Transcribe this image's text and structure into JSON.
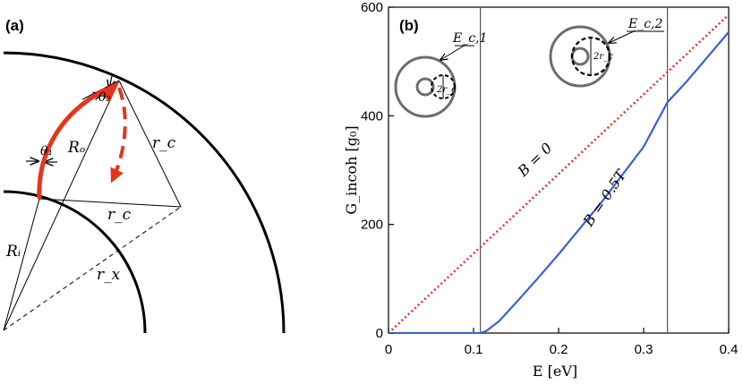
{
  "panel_a": {
    "label": "(a)",
    "annotations": {
      "theta1": "θ₁",
      "theta2": "θ₂",
      "R_o": "Rₒ",
      "R_i": "Rᵢ",
      "r_c_1": "r_c",
      "r_c_2": "r_c",
      "r_x": "r_x"
    },
    "colors": {
      "arrow": "#e8341c",
      "line": "#000000"
    }
  },
  "panel_b": {
    "label": "(b)",
    "inset_labels": {
      "ec1": "E_c,1",
      "ec2": "E_c,2",
      "two_rc_1": "2r_c",
      "two_rc_2": "2r_c"
    },
    "line_labels": {
      "b0": "B = 0",
      "b05": "B = 0.5T"
    },
    "colors": {
      "b0": "#e8302a",
      "b05": "#3a5fdd",
      "vline": "#555555",
      "ring": "#6d6d6d"
    }
  },
  "chart_data": {
    "type": "line",
    "xlabel": "E [eV]",
    "ylabel": "G_incoh [g₀]",
    "xlim": [
      0,
      0.4
    ],
    "ylim": [
      0,
      600
    ],
    "xticks": [
      0,
      0.1,
      0.2,
      0.3,
      0.4
    ],
    "xtick_labels": [
      "0",
      "0.1",
      "0.2",
      "0.3",
      "0.4"
    ],
    "yticks": [
      0,
      200,
      400,
      600
    ],
    "ytick_labels": [
      "0",
      "200",
      "400",
      "600"
    ],
    "vertical_lines": [
      0.108,
      0.328
    ],
    "series": [
      {
        "name": "B = 0",
        "style": "dotted",
        "x": [
          0,
          0.4
        ],
        "y": [
          0,
          586
        ]
      },
      {
        "name": "B = 0.5T",
        "style": "solid",
        "x": [
          0,
          0.108,
          0.115,
          0.13,
          0.15,
          0.175,
          0.2,
          0.25,
          0.3,
          0.328,
          0.35,
          0.4
        ],
        "y": [
          0,
          0,
          4,
          22,
          56,
          100,
          145,
          240,
          343,
          425,
          462,
          554
        ]
      }
    ]
  }
}
